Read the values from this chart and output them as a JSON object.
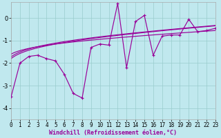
{
  "xlabel": "Windchill (Refroidissement éolien,°C)",
  "bg_color": "#c0e8ee",
  "line_color": "#990099",
  "grid_color": "#99cccc",
  "xlim": [
    0,
    23
  ],
  "ylim": [
    -4.5,
    0.7
  ],
  "yticks": [
    0,
    -1,
    -2,
    -3,
    -4
  ],
  "xticks": [
    0,
    1,
    2,
    3,
    4,
    5,
    6,
    7,
    8,
    9,
    10,
    11,
    12,
    13,
    14,
    15,
    16,
    17,
    18,
    19,
    20,
    21,
    22,
    23
  ],
  "jagged_x": [
    0,
    1,
    2,
    3,
    4,
    5,
    6,
    7,
    8,
    9,
    10,
    11,
    12,
    13,
    14,
    15,
    16,
    17,
    18,
    19,
    20,
    21,
    22,
    23
  ],
  "jagged_y": [
    -3.5,
    -2.0,
    -1.7,
    -1.65,
    -1.8,
    -1.9,
    -2.5,
    -3.35,
    -3.55,
    -1.3,
    -1.15,
    -1.2,
    0.65,
    -2.2,
    -0.15,
    0.12,
    -1.65,
    -0.8,
    -0.75,
    -0.75,
    -0.05,
    -0.6,
    -0.55,
    -0.45
  ],
  "reg1_params": [
    -1.72,
    0.022,
    0.28
  ],
  "reg2_params": [
    -1.8,
    0.022,
    0.3
  ],
  "reg3_params": [
    -1.6,
    0.018,
    0.2
  ],
  "tick_fontsize": 5.5,
  "xlabel_fontsize": 6.0
}
